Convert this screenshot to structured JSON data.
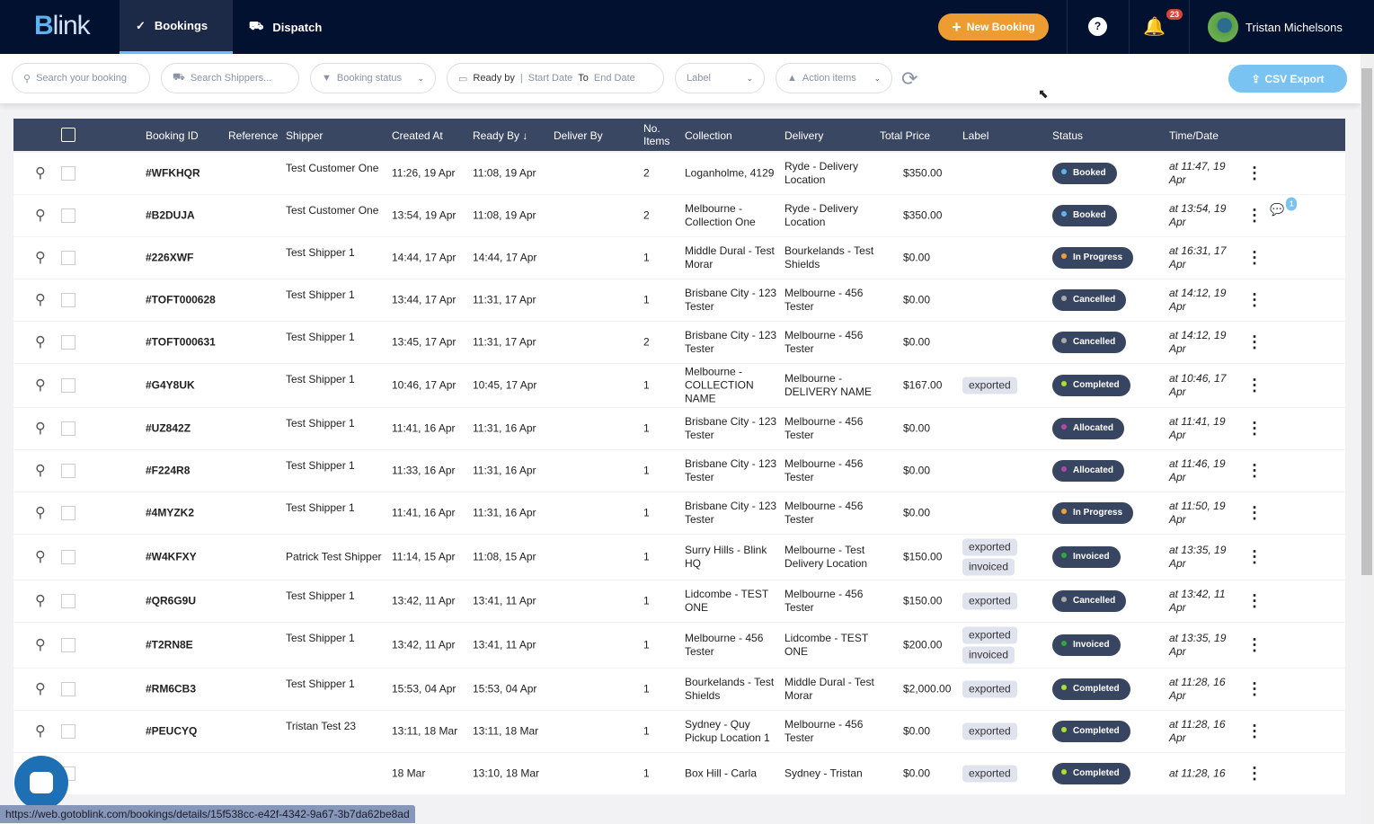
{
  "header": {
    "logo": "Blink",
    "nav": [
      {
        "label": "Bookings",
        "icon": "check-circle-icon"
      },
      {
        "label": "Dispatch",
        "icon": "forklift-icon"
      }
    ],
    "new_booking": "New Booking",
    "help": "?",
    "notifications": "23",
    "user": "Tristan Michelsons"
  },
  "filters": {
    "search_placeholder": "Search your booking",
    "shipper_placeholder": "Search Shippers...",
    "status": "Booking status",
    "ready_by": "Ready by",
    "start": "Start Date",
    "to": "To",
    "end": "End Date",
    "label": "Label",
    "action": "Action items",
    "csv": "CSV Export"
  },
  "columns": [
    "Booking ID",
    "Reference",
    "Shipper",
    "Created At",
    "Ready By",
    "Deliver By",
    "No. Items",
    "Collection",
    "Delivery",
    "Total Price",
    "Label",
    "Status",
    "Time/Date"
  ],
  "status_colors": {
    "Booked": "#5bb5f0",
    "In Progress": "#f0a030",
    "Cancelled": "#aaaaaa",
    "Completed": "#a6e22e",
    "Allocated": "#b04aa8",
    "Invoiced": "#2eaa3a"
  },
  "rows": [
    {
      "id": "#WFKHQR",
      "shipper": "Test Customer One",
      "created": "11:26, 19 Apr",
      "ready": "11:08, 19 Apr",
      "items": "2",
      "collection": "Loganholme, 4129",
      "delivery": "Ryde - Delivery Location",
      "price": "$350.00",
      "labels": [],
      "status": "Booked",
      "time": "at 11:47, 19 Apr"
    },
    {
      "id": "#B2DUJA",
      "shipper": "Test Customer One",
      "created": "13:54, 19 Apr",
      "ready": "11:08, 19 Apr",
      "items": "2",
      "collection": "Melbourne - Collection One",
      "delivery": "Ryde - Delivery Location",
      "price": "$350.00",
      "labels": [],
      "status": "Booked",
      "time": "at 13:54, 19 Apr",
      "chat": "1"
    },
    {
      "id": "#226XWF",
      "shipper": "Test Shipper 1",
      "created": "14:44, 17 Apr",
      "ready": "14:44, 17 Apr",
      "items": "1",
      "collection": "Middle Dural - Test Morar",
      "delivery": "Bourkelands - Test Shields",
      "price": "$0.00",
      "labels": [],
      "status": "In Progress",
      "time": "at 16:31, 17 Apr"
    },
    {
      "id": "#TOFT000628",
      "shipper": "Test Shipper 1",
      "created": "13:44, 17 Apr",
      "ready": "11:31, 17 Apr",
      "items": "1",
      "collection": "Brisbane City - 123 Tester",
      "delivery": "Melbourne - 456 Tester",
      "price": "$0.00",
      "labels": [],
      "status": "Cancelled",
      "time": "at 14:12, 19 Apr"
    },
    {
      "id": "#TOFT000631",
      "shipper": "Test Shipper 1",
      "created": "13:45, 17 Apr",
      "ready": "11:31, 17 Apr",
      "items": "2",
      "collection": "Brisbane City - 123 Tester",
      "delivery": "Melbourne - 456 Tester",
      "price": "$0.00",
      "labels": [],
      "status": "Cancelled",
      "time": "at 14:12, 19 Apr"
    },
    {
      "id": "#G4Y8UK",
      "shipper": "Test Shipper 1",
      "created": "10:46, 17 Apr",
      "ready": "10:45, 17 Apr",
      "items": "1",
      "collection": "Melbourne - COLLECTION NAME",
      "delivery": "Melbourne - DELIVERY NAME",
      "price": "$167.00",
      "labels": [
        "exported"
      ],
      "status": "Completed",
      "time": "at 10:46, 17 Apr"
    },
    {
      "id": "#UZ842Z",
      "shipper": "Test Shipper 1",
      "created": "11:41, 16 Apr",
      "ready": "11:31, 16 Apr",
      "items": "1",
      "collection": "Brisbane City - 123 Tester",
      "delivery": "Melbourne - 456 Tester",
      "price": "$0.00",
      "labels": [],
      "status": "Allocated",
      "time": "at 11:41, 19 Apr"
    },
    {
      "id": "#F224R8",
      "shipper": "Test Shipper 1",
      "created": "11:33, 16 Apr",
      "ready": "11:31, 16 Apr",
      "items": "1",
      "collection": "Brisbane City - 123 Tester",
      "delivery": "Melbourne - 456 Tester",
      "price": "$0.00",
      "labels": [],
      "status": "Allocated",
      "time": "at 11:46, 19 Apr"
    },
    {
      "id": "#4MYZK2",
      "shipper": "Test Shipper 1",
      "created": "11:41, 16 Apr",
      "ready": "11:31, 16 Apr",
      "items": "1",
      "collection": "Brisbane City - 123 Tester",
      "delivery": "Melbourne - 456 Tester",
      "price": "$0.00",
      "labels": [],
      "status": "In Progress",
      "time": "at 11:50, 19 Apr"
    },
    {
      "id": "#W4KFXY",
      "shipper": "Patrick Test Shipper",
      "created": "11:14, 15 Apr",
      "ready": "11:08, 15 Apr",
      "items": "1",
      "collection": "Surry Hills - Blink HQ",
      "delivery": "Melbourne - Test Delivery Location",
      "price": "$150.00",
      "labels": [
        "exported",
        "invoiced"
      ],
      "status": "Invoiced",
      "time": "at 13:35, 19 Apr"
    },
    {
      "id": "#QR6G9U",
      "shipper": "Test Shipper 1",
      "created": "13:42, 11 Apr",
      "ready": "13:41, 11 Apr",
      "items": "1",
      "collection": "Lidcombe - TEST ONE",
      "delivery": "Melbourne - 456 Tester",
      "price": "$150.00",
      "labels": [
        "exported"
      ],
      "status": "Cancelled",
      "time": "at 13:42, 11 Apr"
    },
    {
      "id": "#T2RN8E",
      "shipper": "Test Shipper 1",
      "created": "13:42, 11 Apr",
      "ready": "13:41, 11 Apr",
      "items": "1",
      "collection": "Melbourne - 456 Tester",
      "delivery": "Lidcombe - TEST ONE",
      "price": "$200.00",
      "labels": [
        "exported",
        "invoiced"
      ],
      "status": "Invoiced",
      "time": "at 13:35, 19 Apr"
    },
    {
      "id": "#RM6CB3",
      "shipper": "Test Shipper 1",
      "created": "15:53, 04 Apr",
      "ready": "15:53, 04 Apr",
      "items": "1",
      "collection": "Bourkelands - Test Shields",
      "delivery": "Middle Dural - Test Morar",
      "price": "$2,000.00",
      "labels": [
        "exported"
      ],
      "status": "Completed",
      "time": "at 11:28, 16 Apr"
    },
    {
      "id": "#PEUCYQ",
      "shipper": "Tristan Test 23",
      "created": "13:11, 18 Mar",
      "ready": "13:11, 18 Mar",
      "items": "1",
      "collection": "Sydney - Quy Pickup Location 1",
      "delivery": "Melbourne - 456 Tester",
      "price": "$0.00",
      "labels": [
        "exported"
      ],
      "status": "Completed",
      "time": "at 11:28, 16 Apr"
    },
    {
      "id": "",
      "shipper": "",
      "created": "18 Mar",
      "ready": "13:10, 18 Mar",
      "items": "1",
      "collection": "Box Hill - Carla",
      "delivery": "Sydney - Tristan",
      "price": "$0.00",
      "labels": [
        "exported"
      ],
      "status": "Completed",
      "time": "at 11:28, 16"
    }
  ],
  "status_bar_url": "https://web.gotoblink.com/bookings/details/15f538cc-e42f-4342-9a67-3b7da62be8ad"
}
